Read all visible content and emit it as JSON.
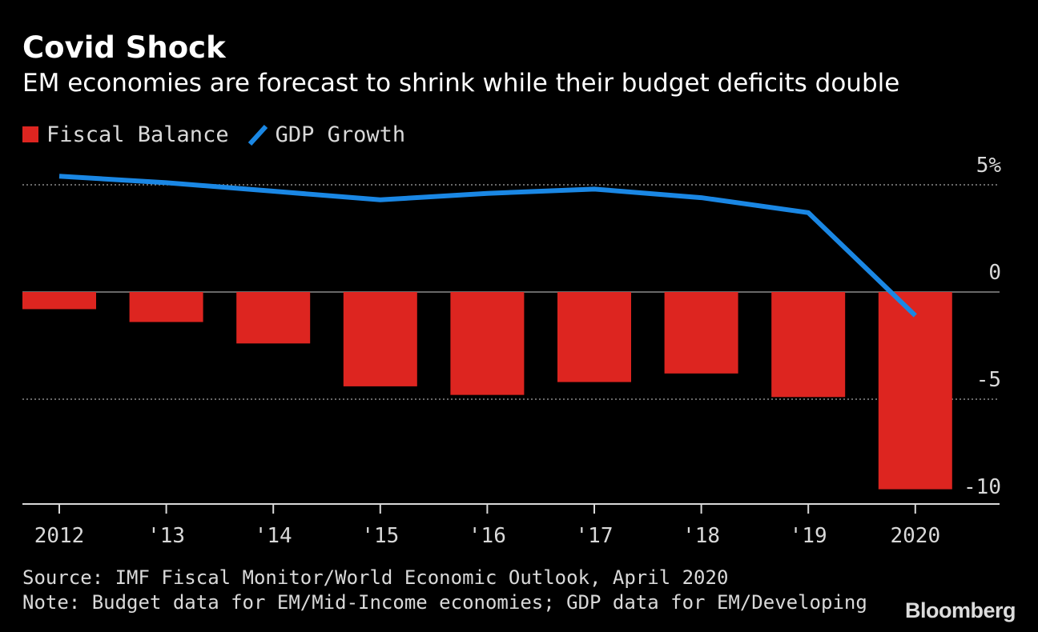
{
  "colors": {
    "background": "#000000",
    "bar": "#dd2520",
    "line": "#1a87e4",
    "text": "#ffffff",
    "muted": "#d9d9d9"
  },
  "legend": {
    "bar_label": "Fiscal Balance",
    "line_label": "GDP Growth"
  },
  "footer": {
    "source": "Source: IMF Fiscal Monitor/World Economic Outlook, April 2020",
    "note": "Note: Budget data for EM/Mid-Income economies; GDP data for EM/Developing"
  },
  "logo": "Bloomberg",
  "chart_data": {
    "type": "bar",
    "title": "Covid Shock",
    "subtitle": "EM economies are forecast to shrink while their budget deficits double",
    "categories": [
      "2012",
      "'13",
      "'14",
      "'15",
      "'16",
      "'17",
      "'18",
      "'19",
      "2020"
    ],
    "series": [
      {
        "name": "Fiscal Balance",
        "type": "bar",
        "values": [
          -0.8,
          -1.4,
          -2.4,
          -4.4,
          -4.8,
          -4.2,
          -3.8,
          -4.9,
          -9.2
        ]
      },
      {
        "name": "GDP Growth",
        "type": "line",
        "values": [
          5.4,
          5.1,
          4.7,
          4.3,
          4.6,
          4.8,
          4.4,
          3.7,
          -1.1
        ]
      }
    ],
    "y_ticks": [
      {
        "value": 5,
        "label": "5%"
      },
      {
        "value": 0,
        "label": "0"
      },
      {
        "value": -5,
        "label": "-5"
      },
      {
        "value": -10,
        "label": "-10"
      }
    ],
    "ylim": [
      -10,
      5
    ],
    "gridlines": true,
    "legend_position": "top-left",
    "y_axis_side": "right"
  }
}
